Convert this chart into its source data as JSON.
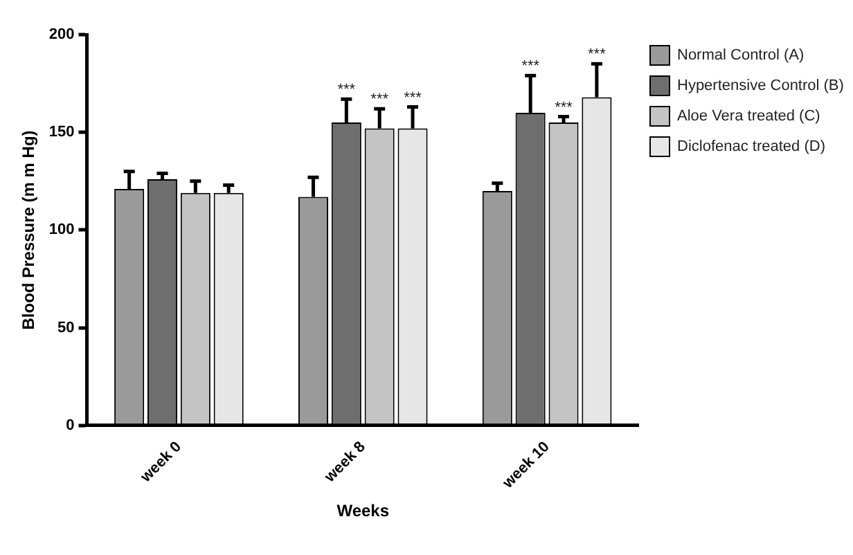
{
  "chart_data": {
    "type": "bar",
    "xlabel": "Weeks",
    "ylabel": "Blood Pressure (m m Hg)",
    "categories": [
      "week 0",
      "week 8",
      "week 10"
    ],
    "series": [
      {
        "name": "Normal Control (A)",
        "color": "#9a9a9a",
        "values": [
          121,
          117,
          120
        ],
        "errors": [
          9,
          10,
          4
        ]
      },
      {
        "name": "Hypertensive Control (B)",
        "color": "#6e6e6e",
        "values": [
          126,
          155,
          160
        ],
        "errors": [
          3,
          12,
          19
        ]
      },
      {
        "name": "Aloe Vera treated (C)",
        "color": "#c4c4c4",
        "values": [
          119,
          152,
          155
        ],
        "errors": [
          6,
          10,
          3
        ]
      },
      {
        "name": "Diclofenac treated (D)",
        "color": "#e6e6e6",
        "values": [
          119,
          152,
          168
        ],
        "errors": [
          4,
          11,
          17
        ]
      }
    ],
    "annotations": [
      {
        "text": "***",
        "x": "week 8",
        "y": 167
      },
      {
        "text": "***",
        "x": "week 8",
        "y": 162
      },
      "***",
      {
        "text": "***",
        "x": "week 10",
        "y": 179
      },
      {
        "text": "***",
        "x": "week 10",
        "y": 158
      },
      "***"
    ],
    "ylim": [
      0,
      200
    ],
    "yticks": [
      0,
      50,
      100,
      150,
      200
    ],
    "grid": false,
    "legend": "top right"
  }
}
